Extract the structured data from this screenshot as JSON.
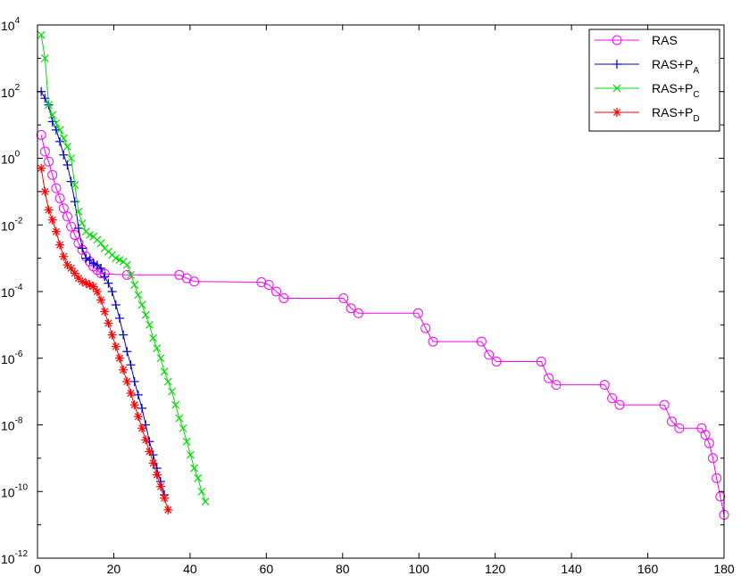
{
  "chart_data": {
    "type": "line",
    "xlim": [
      0,
      180
    ],
    "ylim_exp": [
      -12,
      4
    ],
    "yscale": "log",
    "grid": false,
    "legend_position": "top-right",
    "x_ticks": [
      {
        "value": 0,
        "label": "0"
      },
      {
        "value": 20,
        "label": "20"
      },
      {
        "value": 40,
        "label": "40"
      },
      {
        "value": 60,
        "label": "60"
      },
      {
        "value": 80,
        "label": "80"
      },
      {
        "value": 100,
        "label": "100"
      },
      {
        "value": 120,
        "label": "120"
      },
      {
        "value": 140,
        "label": "140"
      },
      {
        "value": 160,
        "label": "160"
      },
      {
        "value": 180,
        "label": "180"
      }
    ],
    "y_ticks": [
      {
        "exp": 4,
        "base": "10",
        "power": "4"
      },
      {
        "exp": 2,
        "base": "10",
        "power": "2"
      },
      {
        "exp": 0,
        "base": "10",
        "power": "0"
      },
      {
        "exp": -2,
        "base": "10",
        "power": "-2"
      },
      {
        "exp": -4,
        "base": "10",
        "power": "-4"
      },
      {
        "exp": -6,
        "base": "10",
        "power": "-6"
      },
      {
        "exp": -8,
        "base": "10",
        "power": "-8"
      },
      {
        "exp": -10,
        "base": "10",
        "power": "-10"
      },
      {
        "exp": -12,
        "base": "10",
        "power": "-12"
      }
    ],
    "series": [
      {
        "name": "RAS",
        "legend_main": "RAS",
        "legend_sub": "",
        "color": "#ff00ff",
        "marker": "circle",
        "anchors": [
          [
            1,
            0.7
          ],
          [
            2,
            0.2
          ],
          [
            3,
            -0.1
          ],
          [
            4,
            -0.5
          ],
          [
            5,
            -0.9
          ],
          [
            6,
            -1.2
          ],
          [
            7,
            -1.5
          ],
          [
            8,
            -1.75
          ],
          [
            9,
            -2.05
          ],
          [
            10,
            -2.3
          ],
          [
            11,
            -2.55
          ],
          [
            12,
            -2.75
          ],
          [
            13,
            -2.95
          ],
          [
            14,
            -3.1
          ],
          [
            15,
            -3.25
          ],
          [
            16,
            -3.35
          ],
          [
            17,
            -3.45
          ],
          [
            18,
            -3.47
          ],
          [
            24,
            -3.5
          ],
          [
            38,
            -3.5
          ],
          [
            40,
            -3.6
          ],
          [
            42,
            -3.7
          ],
          [
            60,
            -3.72
          ],
          [
            62,
            -3.8
          ],
          [
            64,
            -4.0
          ],
          [
            66,
            -4.2
          ],
          [
            82,
            -4.2
          ],
          [
            84,
            -4.5
          ],
          [
            86,
            -4.65
          ],
          [
            102,
            -4.65
          ],
          [
            104,
            -5.1
          ],
          [
            106,
            -5.5
          ],
          [
            119,
            -5.5
          ],
          [
            121,
            -5.9
          ],
          [
            123,
            -6.1
          ],
          [
            135,
            -6.1
          ],
          [
            137,
            -6.6
          ],
          [
            139,
            -6.8
          ],
          [
            152,
            -6.8
          ],
          [
            154,
            -7.2
          ],
          [
            156,
            -7.4
          ],
          [
            168,
            -7.4
          ],
          [
            170,
            -7.9
          ],
          [
            172,
            -8.1
          ],
          [
            178,
            -8.1
          ],
          [
            179,
            -8.3
          ],
          [
            180,
            -8.55
          ],
          [
            181,
            -9.0
          ],
          [
            182,
            -9.6
          ],
          [
            183,
            -10.15
          ],
          [
            184,
            -10.7
          ]
        ]
      },
      {
        "name": "RAS+PA",
        "legend_main": "RAS+P",
        "legend_sub": "A",
        "color": "#0000cc",
        "marker": "plus",
        "anchors": [
          [
            1,
            2.0
          ],
          [
            2,
            1.8
          ],
          [
            3,
            1.6
          ],
          [
            4,
            1.1
          ],
          [
            5,
            0.85
          ],
          [
            6,
            0.5
          ],
          [
            7,
            0.1
          ],
          [
            8,
            -0.2
          ],
          [
            9,
            -0.7
          ],
          [
            10,
            -1.3
          ],
          [
            11,
            -2.1
          ],
          [
            12,
            -2.7
          ],
          [
            13,
            -3.0
          ],
          [
            14,
            -3.05
          ],
          [
            15,
            -3.15
          ],
          [
            16,
            -3.2
          ],
          [
            17,
            -3.3
          ],
          [
            18,
            -3.55
          ],
          [
            19,
            -3.75
          ],
          [
            20,
            -4.0
          ],
          [
            21,
            -4.4
          ],
          [
            22,
            -4.8
          ],
          [
            23,
            -5.3
          ],
          [
            24,
            -5.8
          ],
          [
            25,
            -6.2
          ],
          [
            26,
            -6.7
          ],
          [
            27,
            -7.1
          ],
          [
            28,
            -7.5
          ],
          [
            29,
            -8.0
          ],
          [
            30,
            -8.5
          ],
          [
            31,
            -8.9
          ],
          [
            32,
            -9.3
          ],
          [
            33,
            -9.7
          ],
          [
            34,
            -10.1
          ]
        ]
      },
      {
        "name": "RAS+PC",
        "legend_main": "RAS+P",
        "legend_sub": "C",
        "color": "#00dd00",
        "marker": "x",
        "anchors": [
          [
            1,
            3.7
          ],
          [
            2,
            3.0
          ],
          [
            3,
            1.6
          ],
          [
            4,
            1.3
          ],
          [
            5,
            1.05
          ],
          [
            6,
            0.85
          ],
          [
            7,
            0.6
          ],
          [
            8,
            0.35
          ],
          [
            9,
            0.0
          ],
          [
            10,
            -0.8
          ],
          [
            11,
            -1.6
          ],
          [
            12,
            -1.95
          ],
          [
            13,
            -2.2
          ],
          [
            14,
            -2.3
          ],
          [
            15,
            -2.35
          ],
          [
            16,
            -2.45
          ],
          [
            17,
            -2.55
          ],
          [
            18,
            -2.7
          ],
          [
            19,
            -2.8
          ],
          [
            20,
            -2.9
          ],
          [
            21,
            -3.0
          ],
          [
            22,
            -3.05
          ],
          [
            23,
            -3.1
          ],
          [
            24,
            -3.2
          ],
          [
            25,
            -3.5
          ],
          [
            26,
            -3.8
          ],
          [
            27,
            -4.1
          ],
          [
            28,
            -4.4
          ],
          [
            29,
            -4.7
          ],
          [
            30,
            -5.0
          ],
          [
            31,
            -5.4
          ],
          [
            32,
            -5.7
          ],
          [
            33,
            -6.0
          ],
          [
            34,
            -6.4
          ],
          [
            35,
            -6.7
          ],
          [
            36,
            -7.0
          ],
          [
            37,
            -7.4
          ],
          [
            38,
            -7.8
          ],
          [
            39,
            -8.1
          ],
          [
            40,
            -8.5
          ],
          [
            41,
            -8.9
          ],
          [
            42,
            -9.3
          ],
          [
            43,
            -9.6
          ],
          [
            44,
            -10.0
          ],
          [
            45,
            -10.3
          ]
        ]
      },
      {
        "name": "RAS+PD",
        "legend_main": "RAS+P",
        "legend_sub": "D",
        "color": "#ff0000",
        "marker": "star",
        "anchors": [
          [
            1,
            -0.3
          ],
          [
            2,
            -1.0
          ],
          [
            3,
            -1.55
          ],
          [
            4,
            -1.85
          ],
          [
            5,
            -2.2
          ],
          [
            6,
            -2.6
          ],
          [
            7,
            -2.95
          ],
          [
            8,
            -3.2
          ],
          [
            9,
            -3.3
          ],
          [
            10,
            -3.45
          ],
          [
            11,
            -3.6
          ],
          [
            12,
            -3.7
          ],
          [
            13,
            -3.75
          ],
          [
            14,
            -3.8
          ],
          [
            15,
            -3.85
          ],
          [
            16,
            -4.0
          ],
          [
            17,
            -4.25
          ],
          [
            18,
            -4.6
          ],
          [
            19,
            -4.95
          ],
          [
            20,
            -5.3
          ],
          [
            21,
            -5.65
          ],
          [
            22,
            -6.0
          ],
          [
            23,
            -6.35
          ],
          [
            24,
            -6.7
          ],
          [
            25,
            -7.05
          ],
          [
            26,
            -7.4
          ],
          [
            27,
            -7.75
          ],
          [
            28,
            -8.1
          ],
          [
            29,
            -8.45
          ],
          [
            30,
            -8.8
          ],
          [
            31,
            -9.15
          ],
          [
            32,
            -9.5
          ],
          [
            33,
            -9.85
          ],
          [
            34,
            -10.2
          ],
          [
            35,
            -10.55
          ]
        ]
      }
    ]
  }
}
